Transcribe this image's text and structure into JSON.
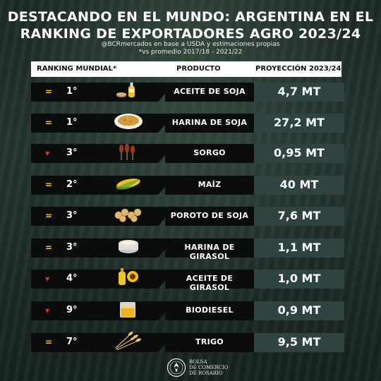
{
  "title_line1": "DESTACANDO EN EL MUNDO: ARGENTINA EN EL",
  "title_line2": "RANKING DE EXPORTADORES AGRO 2023/24",
  "subtitle_line1": "@BCRmercados en base a USDA y estimaciones propias",
  "subtitle_line2": "*vs promedio 2017/18 - 2021/22",
  "header": {
    "ranking": "RANKING MUNDIAL*",
    "producto": "PRODUCTO",
    "proyeccion": "PROYECCIÓN 2023/24"
  },
  "icons": {
    "equal": "=",
    "down": "▼"
  },
  "rows": [
    {
      "trend": "equal",
      "rank": "1°",
      "product": "ACEITE DE SOJA",
      "value": "4,7 MT",
      "image": "soy-oil-bottle-icon"
    },
    {
      "trend": "equal",
      "rank": "1°",
      "product": "HARINA DE SOJA",
      "value": "27,2 MT",
      "image": "soy-meal-bowl-icon"
    },
    {
      "trend": "down",
      "rank": "3°",
      "product": "SORGO",
      "value": "0,95 MT",
      "image": "sorghum-icon"
    },
    {
      "trend": "equal",
      "rank": "2°",
      "product": "MAÍZ",
      "value": "40 MT",
      "image": "corn-cob-icon"
    },
    {
      "trend": "equal",
      "rank": "3°",
      "product": "POROTO DE SOJA",
      "value": "7,6 MT",
      "image": "soybeans-icon"
    },
    {
      "trend": "equal",
      "rank": "3°",
      "product": "HARINA DE GIRASOL",
      "value": "1,1 MT",
      "image": "sunflower-meal-icon"
    },
    {
      "trend": "down",
      "rank": "4°",
      "product": "ACEITE DE GIRASOL",
      "value": "1,0 MT",
      "image": "sunflower-oil-icon"
    },
    {
      "trend": "down",
      "rank": "9°",
      "product": "BIODIESEL",
      "value": "0,9 MT",
      "image": "biodiesel-jar-icon"
    },
    {
      "trend": "equal",
      "rank": "7°",
      "product": "TRIGO",
      "value": "9,5 MT",
      "image": "wheat-icon"
    }
  ],
  "footer": {
    "line1": "BOLSA",
    "line2": "DE COMERCIO",
    "line3": "DE ROSARIO",
    "logo": "bcr-seal-icon"
  }
}
